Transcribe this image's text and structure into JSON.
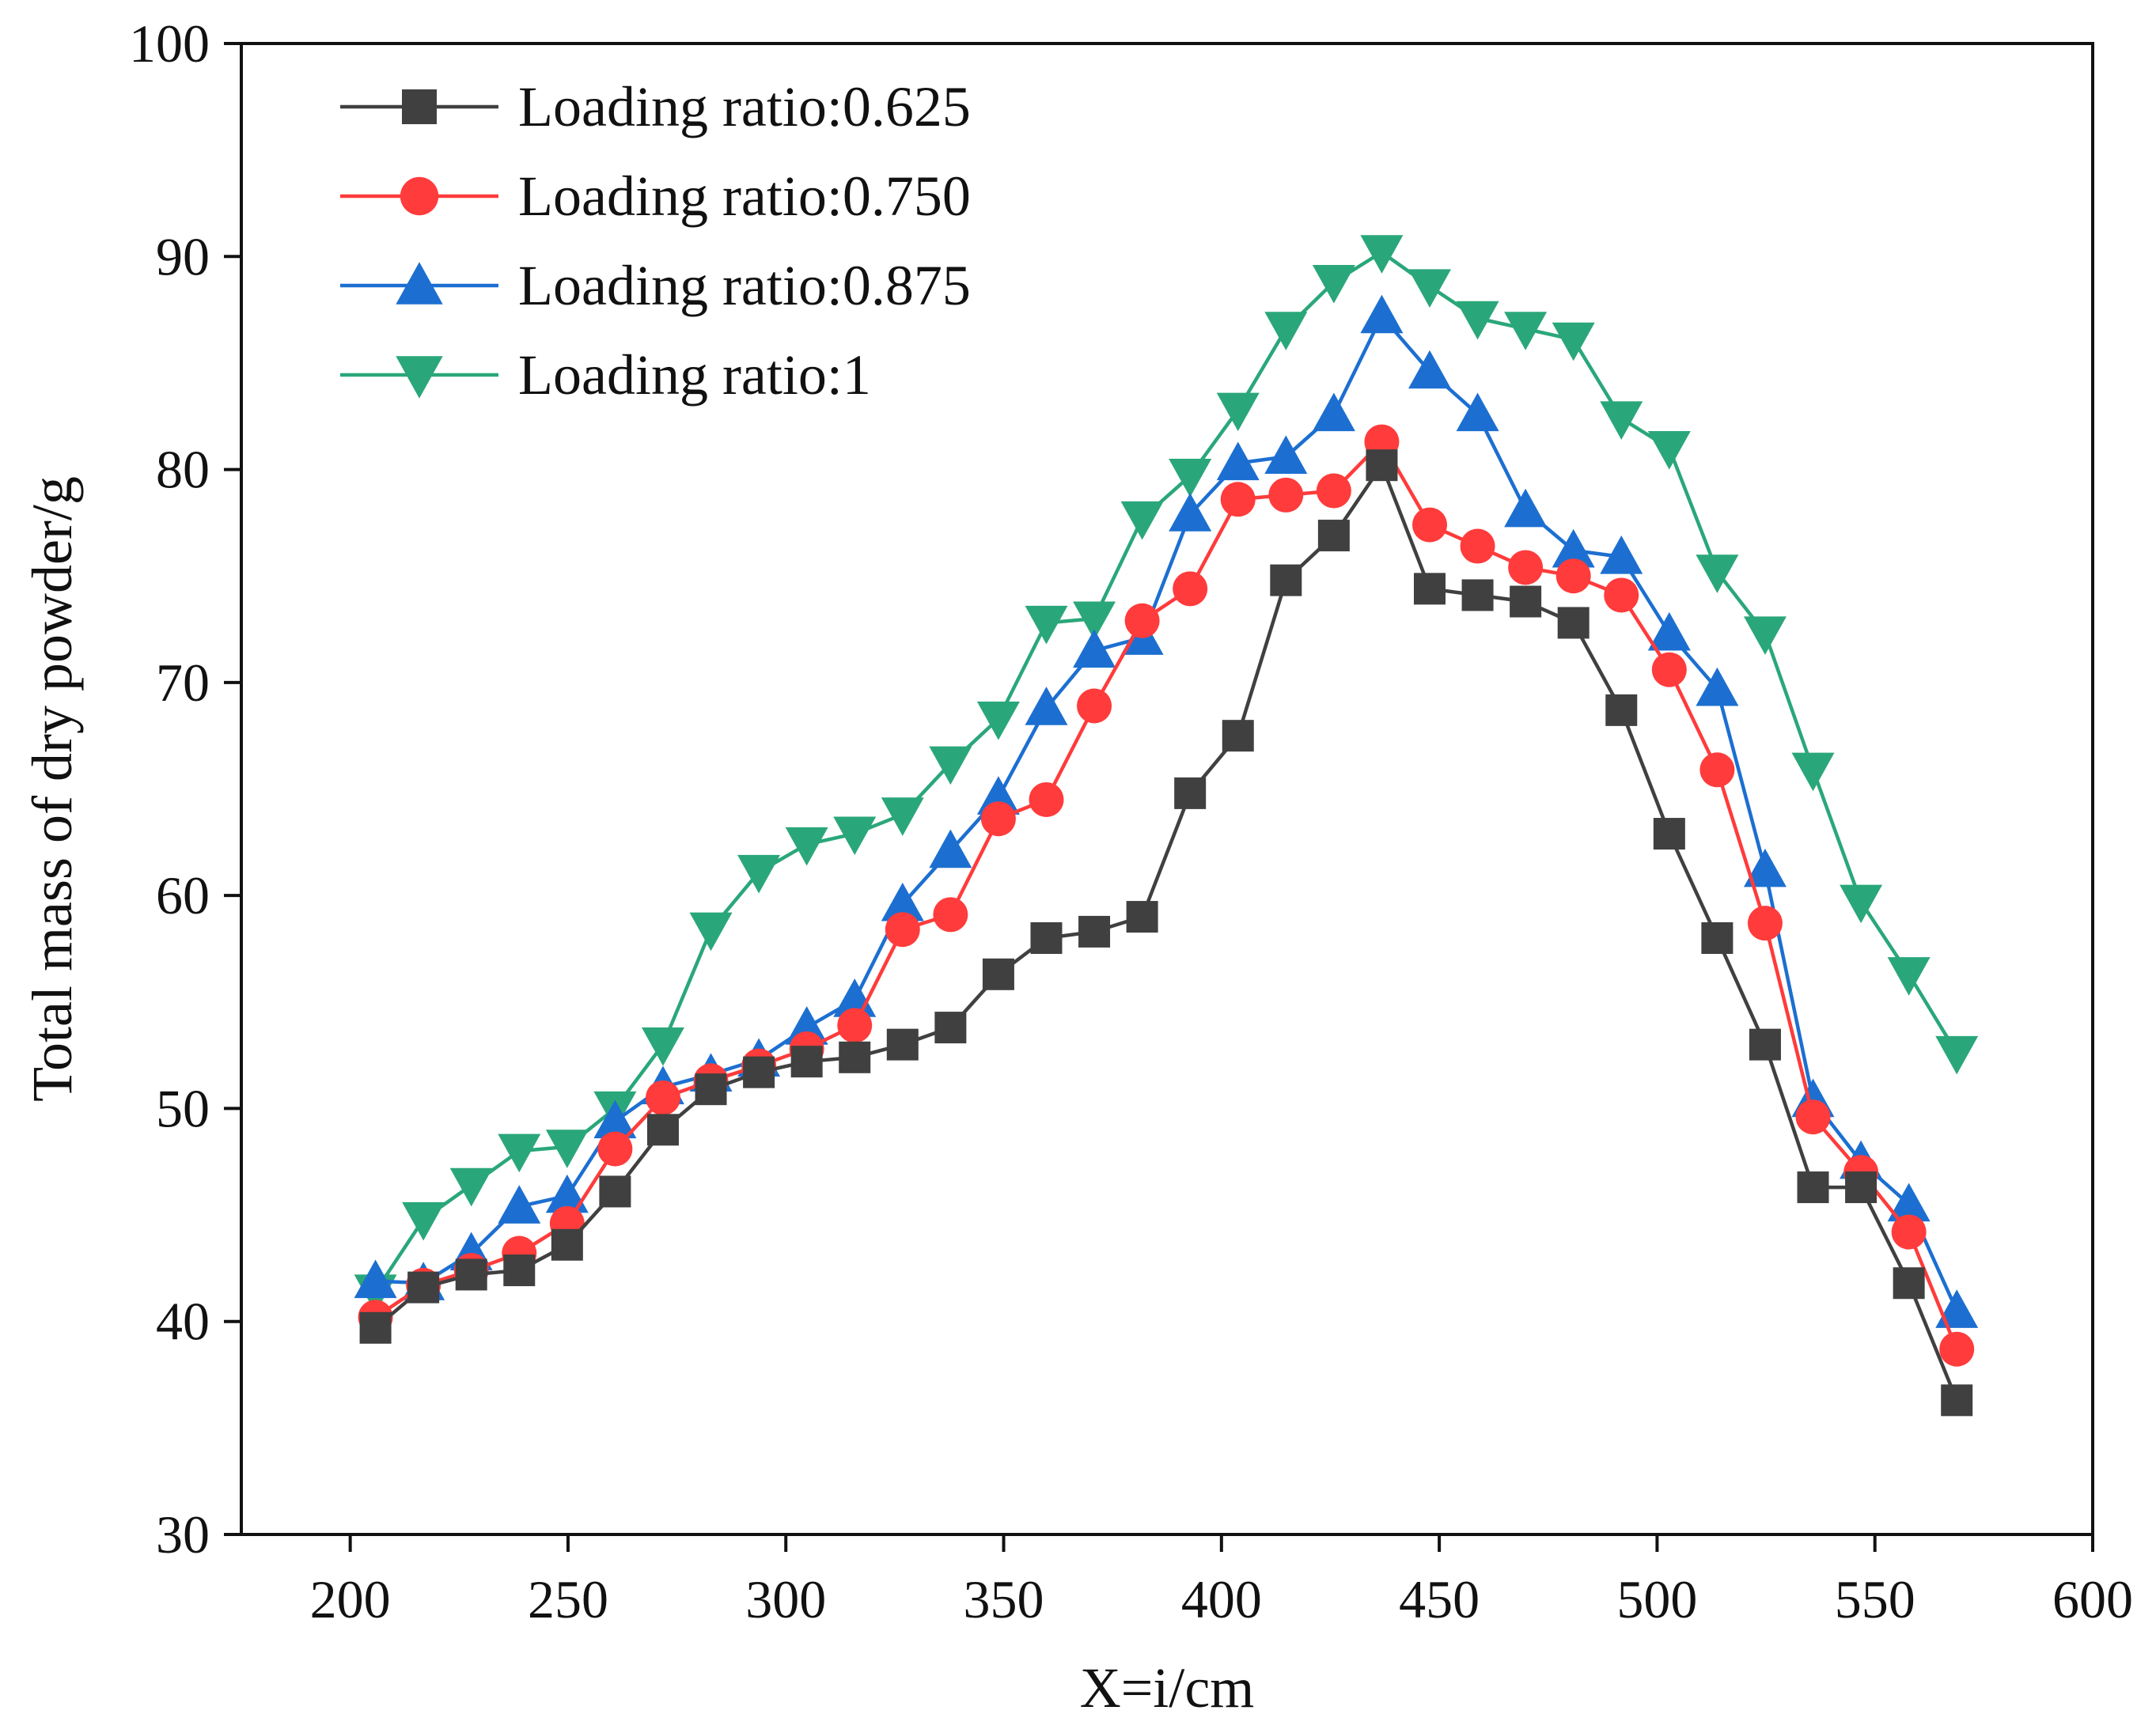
{
  "chart_data": {
    "type": "line",
    "title": "",
    "xlabel": "X=i/cm",
    "ylabel": "Total mass of dry powder/g",
    "xlim": [
      175,
      600
    ],
    "ylim": [
      30,
      100
    ],
    "xticks": [
      200,
      250,
      300,
      350,
      400,
      450,
      500,
      550,
      600
    ],
    "yticks": [
      30,
      40,
      50,
      60,
      70,
      80,
      90,
      100
    ],
    "grid": false,
    "legend_position": "top-left",
    "x": [
      205.8,
      216.8,
      227.8,
      238.8,
      249.8,
      260.8,
      271.8,
      282.8,
      293.8,
      304.8,
      315.8,
      326.8,
      337.8,
      348.8,
      359.8,
      370.8,
      381.8,
      392.8,
      403.8,
      414.8,
      425.8,
      436.8,
      447.8,
      458.8,
      469.8,
      480.8,
      491.8,
      502.8,
      513.8,
      524.8,
      535.8,
      546.8,
      557.8,
      568.8
    ],
    "series": [
      {
        "name": "Loading ratio:0.625",
        "color": "#404040",
        "marker": "square",
        "values": [
          39.7,
          41.6,
          42.2,
          42.4,
          43.6,
          46.1,
          49.0,
          50.9,
          51.7,
          52.2,
          52.4,
          53.0,
          53.8,
          56.3,
          58.0,
          58.3,
          59.0,
          64.8,
          67.5,
          74.8,
          76.9,
          80.2,
          74.4,
          74.1,
          73.8,
          72.8,
          68.7,
          62.9,
          58.0,
          53.0,
          46.3,
          46.3,
          41.8,
          36.3
        ]
      },
      {
        "name": "Loading ratio:0.750",
        "color": "#ff3b3b",
        "marker": "circle",
        "values": [
          40.2,
          41.7,
          42.4,
          43.2,
          44.6,
          48.1,
          50.5,
          51.3,
          52.0,
          52.8,
          53.9,
          58.4,
          59.1,
          63.6,
          64.5,
          68.9,
          72.9,
          74.4,
          78.6,
          78.8,
          79.0,
          81.3,
          77.4,
          76.4,
          75.4,
          75.0,
          74.1,
          70.6,
          65.9,
          58.7,
          49.6,
          47.0,
          44.2,
          38.7
        ]
      },
      {
        "name": "Loading ratio:0.875",
        "color": "#1c6fd1",
        "marker": "triangle-up",
        "values": [
          41.9,
          41.8,
          43.2,
          45.4,
          45.9,
          49.4,
          51.0,
          51.6,
          52.3,
          53.8,
          55.1,
          59.6,
          62.1,
          64.6,
          68.8,
          71.5,
          72.1,
          77.9,
          80.3,
          80.6,
          82.6,
          87.2,
          84.6,
          82.6,
          78.1,
          76.2,
          75.9,
          72.3,
          69.7,
          61.2,
          50.4,
          47.5,
          45.5,
          40.5
        ]
      },
      {
        "name": "Loading ratio:1",
        "color": "#2aa77a",
        "marker": "triangle-down",
        "values": [
          41.4,
          44.8,
          46.4,
          48.0,
          48.2,
          50.0,
          53.0,
          58.4,
          61.1,
          62.4,
          62.9,
          63.8,
          66.2,
          68.3,
          72.8,
          73.0,
          77.7,
          79.7,
          82.8,
          86.6,
          88.8,
          90.2,
          88.6,
          87.1,
          86.6,
          86.1,
          82.4,
          81.0,
          75.2,
          72.3,
          65.9,
          59.7,
          56.3,
          52.6
        ]
      }
    ]
  }
}
